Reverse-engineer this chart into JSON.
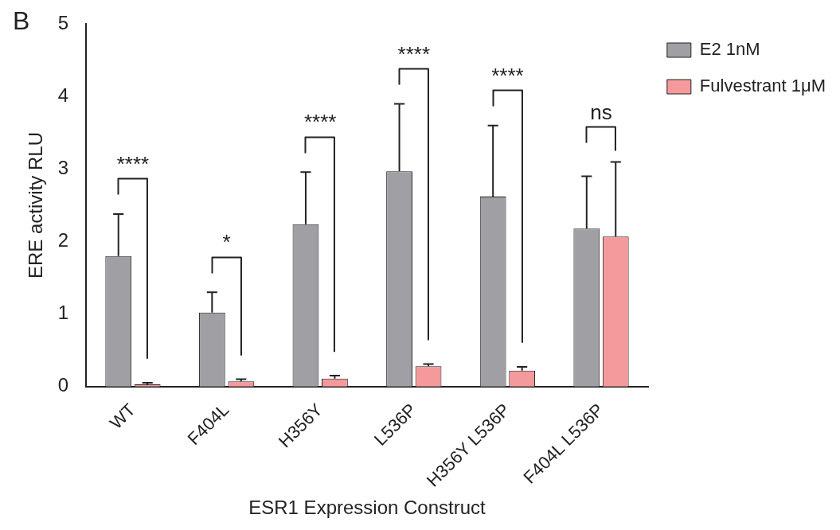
{
  "chart_data": {
    "type": "bar",
    "xlabel": "ESR1 Expression Construct",
    "ylabel": "ERE activity RLU",
    "categories": [
      "WT",
      "F404L",
      "H356Y",
      "L536P",
      "H356Y L536P",
      "F404L L536P"
    ],
    "series": [
      {
        "name": "E2 1nM",
        "color": "#a0a0a4",
        "values": [
          1.8,
          1.02,
          2.24,
          2.97,
          2.62,
          2.18
        ],
        "errors": [
          [
            1.8,
            2.38
          ],
          [
            1.02,
            1.3
          ],
          [
            2.24,
            2.96
          ],
          [
            2.97,
            3.9
          ],
          [
            2.62,
            3.6
          ],
          [
            2.18,
            2.9
          ]
        ]
      },
      {
        "name": "Fulvestrant 1μM",
        "color": "#f4999c",
        "values": [
          0.03,
          0.07,
          0.11,
          0.28,
          0.22,
          2.07
        ],
        "errors": [
          [
            0.03,
            0.05
          ],
          [
            0.07,
            0.1
          ],
          [
            0.11,
            0.15
          ],
          [
            0.28,
            0.31
          ],
          [
            0.22,
            0.27
          ],
          [
            2.07,
            3.1
          ]
        ]
      }
    ],
    "ylim": [
      0,
      5
    ],
    "yticks": [
      0,
      1,
      2,
      3,
      4,
      5
    ],
    "grid": false,
    "legend": "top right",
    "annotations": [
      "B",
      "****",
      "*",
      "****",
      "****",
      "****",
      "ns"
    ]
  }
}
